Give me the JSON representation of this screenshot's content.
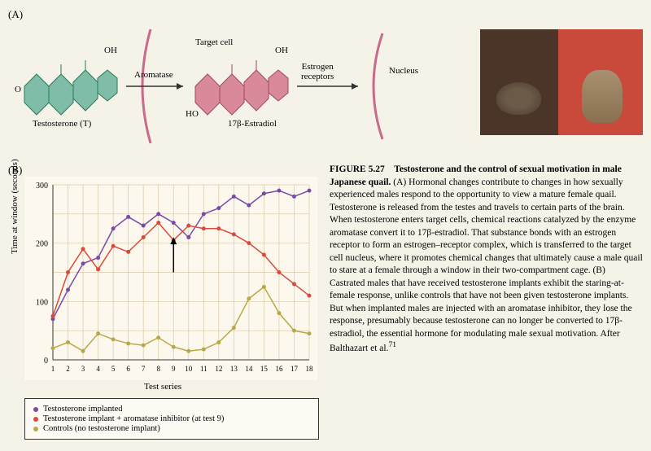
{
  "panelA_label": "(A)",
  "panelB_label": "(B)",
  "diagram": {
    "testosterone_label": "Testosterone (T)",
    "aromatase_label": "Aromatase",
    "target_cell_label": "Target cell",
    "estradiol_label": "17β-Estradiol",
    "estrogen_receptors_label": "Estrogen\nreceptors",
    "nucleus_label": "Nucleus",
    "oh_label": "OH",
    "ho_label": "HO",
    "o_label": "O",
    "testosterone_color": "#7fbda8",
    "estradiol_color": "#d98a9a",
    "arc_color": "#c96a8a",
    "arrow_color": "#333333"
  },
  "chart": {
    "type": "line",
    "xlabel": "Test series",
    "ylabel": "Time at window (seconds)",
    "xlim": [
      1,
      18
    ],
    "ylim": [
      0,
      300
    ],
    "ytick_step": 100,
    "xticks": [
      1,
      2,
      3,
      4,
      5,
      6,
      7,
      8,
      9,
      10,
      11,
      12,
      13,
      14,
      15,
      16,
      17,
      18
    ],
    "grid_color": "#d8c8a8",
    "background_color": "#fdf8ed",
    "arrow_at_x": 9,
    "series": [
      {
        "name": "Testosterone implanted",
        "color": "#7a4aa8",
        "values": [
          70,
          120,
          165,
          175,
          225,
          245,
          230,
          250,
          235,
          210,
          250,
          260,
          280,
          265,
          285,
          290,
          280,
          290
        ]
      },
      {
        "name": "Testosterone implant + aromatase inhibitor (at test 9)",
        "color": "#d94a3a",
        "values": [
          75,
          150,
          190,
          155,
          195,
          185,
          210,
          235,
          205,
          230,
          225,
          225,
          215,
          200,
          180,
          150,
          130,
          110
        ]
      },
      {
        "name": "Controls (no testosterone implant)",
        "color": "#b8a848",
        "values": [
          20,
          30,
          15,
          45,
          35,
          28,
          25,
          38,
          22,
          15,
          18,
          30,
          55,
          105,
          125,
          80,
          50,
          45
        ]
      }
    ]
  },
  "legend": {
    "items": [
      {
        "color": "#7a4aa8",
        "label": "Testosterone implanted"
      },
      {
        "color": "#d94a3a",
        "label": "Testosterone implant + aromatase inhibitor (at test 9)"
      },
      {
        "color": "#b8a848",
        "label": "Controls (no testosterone implant)"
      }
    ]
  },
  "caption": {
    "fig_num": "FIGURE 5.27",
    "title": "Testosterone and the control of sexual motivation in male Japanese quail.",
    "body": "(A) Hormonal changes contribute to changes in how sexually experienced males respond to the opportunity to view a mature female quail. Testosterone is released from the testes and travels to certain parts of the brain. When testosterone enters target cells, chemical reactions catalyzed by the enzyme aromatase convert it to 17β-estradiol. That substance bonds with an estrogen receptor to form an estrogen–receptor complex, which is transferred to the target cell nucleus, where it promotes chemical changes that ultimately cause a male quail to stare at a female through a window in their two-compartment cage. (B) Castrated males that have received testosterone implants exhibit the staring-at-female response, unlike controls that have not been given testosterone implants. But when implanted males are injected with an aromatase inhibitor, they lose the response, presumably because testosterone can no longer be converted to 17β-estradiol, the essential hormone for modulating male sexual motivation. After Balthazart et al.",
    "ref": "71"
  }
}
